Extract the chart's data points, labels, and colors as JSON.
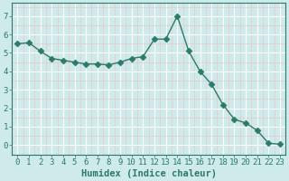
{
  "x": [
    0,
    1,
    2,
    3,
    4,
    5,
    6,
    7,
    8,
    9,
    10,
    11,
    12,
    13,
    14,
    15,
    16,
    17,
    18,
    19,
    20,
    21,
    22,
    23
  ],
  "y": [
    5.5,
    5.55,
    5.1,
    4.7,
    4.6,
    4.5,
    4.4,
    4.4,
    4.35,
    4.5,
    4.7,
    4.8,
    5.75,
    5.75,
    7.0,
    5.1,
    4.0,
    3.3,
    2.2,
    1.4,
    1.2,
    0.8,
    0.1,
    0.05
  ],
  "line_color": "#2d7a6a",
  "marker_color": "#2d7a6a",
  "bg_color": "#ceeaea",
  "grid_major_color": "#ffffff",
  "grid_minor_color": "#e8c8c8",
  "xlabel": "Humidex (Indice chaleur)",
  "xlim": [
    -0.5,
    23.5
  ],
  "ylim": [
    -0.3,
    7.7
  ],
  "yticks": [
    0,
    1,
    2,
    3,
    4,
    5,
    6,
    7
  ],
  "xticks": [
    0,
    1,
    2,
    3,
    4,
    5,
    6,
    7,
    8,
    9,
    10,
    11,
    12,
    13,
    14,
    15,
    16,
    17,
    18,
    19,
    20,
    21,
    22,
    23
  ],
  "xlabel_fontsize": 7.5,
  "tick_fontsize": 6.5,
  "line_width": 1.0,
  "marker_size": 3.5
}
